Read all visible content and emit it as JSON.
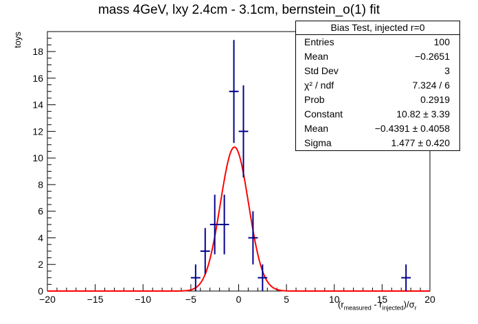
{
  "chart_data": {
    "type": "histogram",
    "title": "mass 4GeV, lxy 2.4cm - 3.1cm, bernstein_o(1) fit",
    "ylabel": "toys",
    "xlabel_parts": [
      "(r",
      "measured",
      " - r",
      "injected",
      ")/σ",
      "r"
    ],
    "xlim": [
      -20,
      20
    ],
    "ylim": [
      0,
      19.5
    ],
    "xticks": [
      -20,
      -15,
      -10,
      -5,
      0,
      5,
      10,
      15,
      20
    ],
    "yticks": [
      0,
      2,
      4,
      6,
      8,
      10,
      12,
      14,
      16,
      18
    ],
    "bin_width": 1,
    "bins": [
      {
        "x": -4.5,
        "y": 1,
        "err": 1.0
      },
      {
        "x": -3.5,
        "y": 3,
        "err": 1.73
      },
      {
        "x": -2.5,
        "y": 5,
        "err": 2.24
      },
      {
        "x": -1.5,
        "y": 5,
        "err": 2.24
      },
      {
        "x": -0.5,
        "y": 15,
        "err": 3.87
      },
      {
        "x": 0.5,
        "y": 12,
        "err": 3.46
      },
      {
        "x": 1.5,
        "y": 4,
        "err": 2.0
      },
      {
        "x": 2.5,
        "y": 1,
        "err": 1.0
      },
      {
        "x": 17.5,
        "y": 1,
        "err": 1.0
      }
    ],
    "fit": {
      "type": "gaussian",
      "constant": 10.82,
      "mean": -0.4391,
      "sigma": 1.477
    },
    "colors": {
      "points": "#00008b",
      "fit": "#ff0000"
    },
    "stats": {
      "title": "Bias Test, injected r=0",
      "rows": [
        {
          "label": "Entries",
          "value": "100"
        },
        {
          "label": "Mean",
          "value": "−0.2651"
        },
        {
          "label": "Std Dev",
          "value": "3"
        },
        {
          "label": "χ² / ndf",
          "value": "7.324 / 6"
        },
        {
          "label": "Prob",
          "value": "0.2919"
        },
        {
          "label": "Constant",
          "value": "10.82 ± 3.39"
        },
        {
          "label": "Mean",
          "value": "−0.4391 ± 0.4058"
        },
        {
          "label": "Sigma",
          "value": "1.477 ± 0.420"
        }
      ]
    }
  }
}
